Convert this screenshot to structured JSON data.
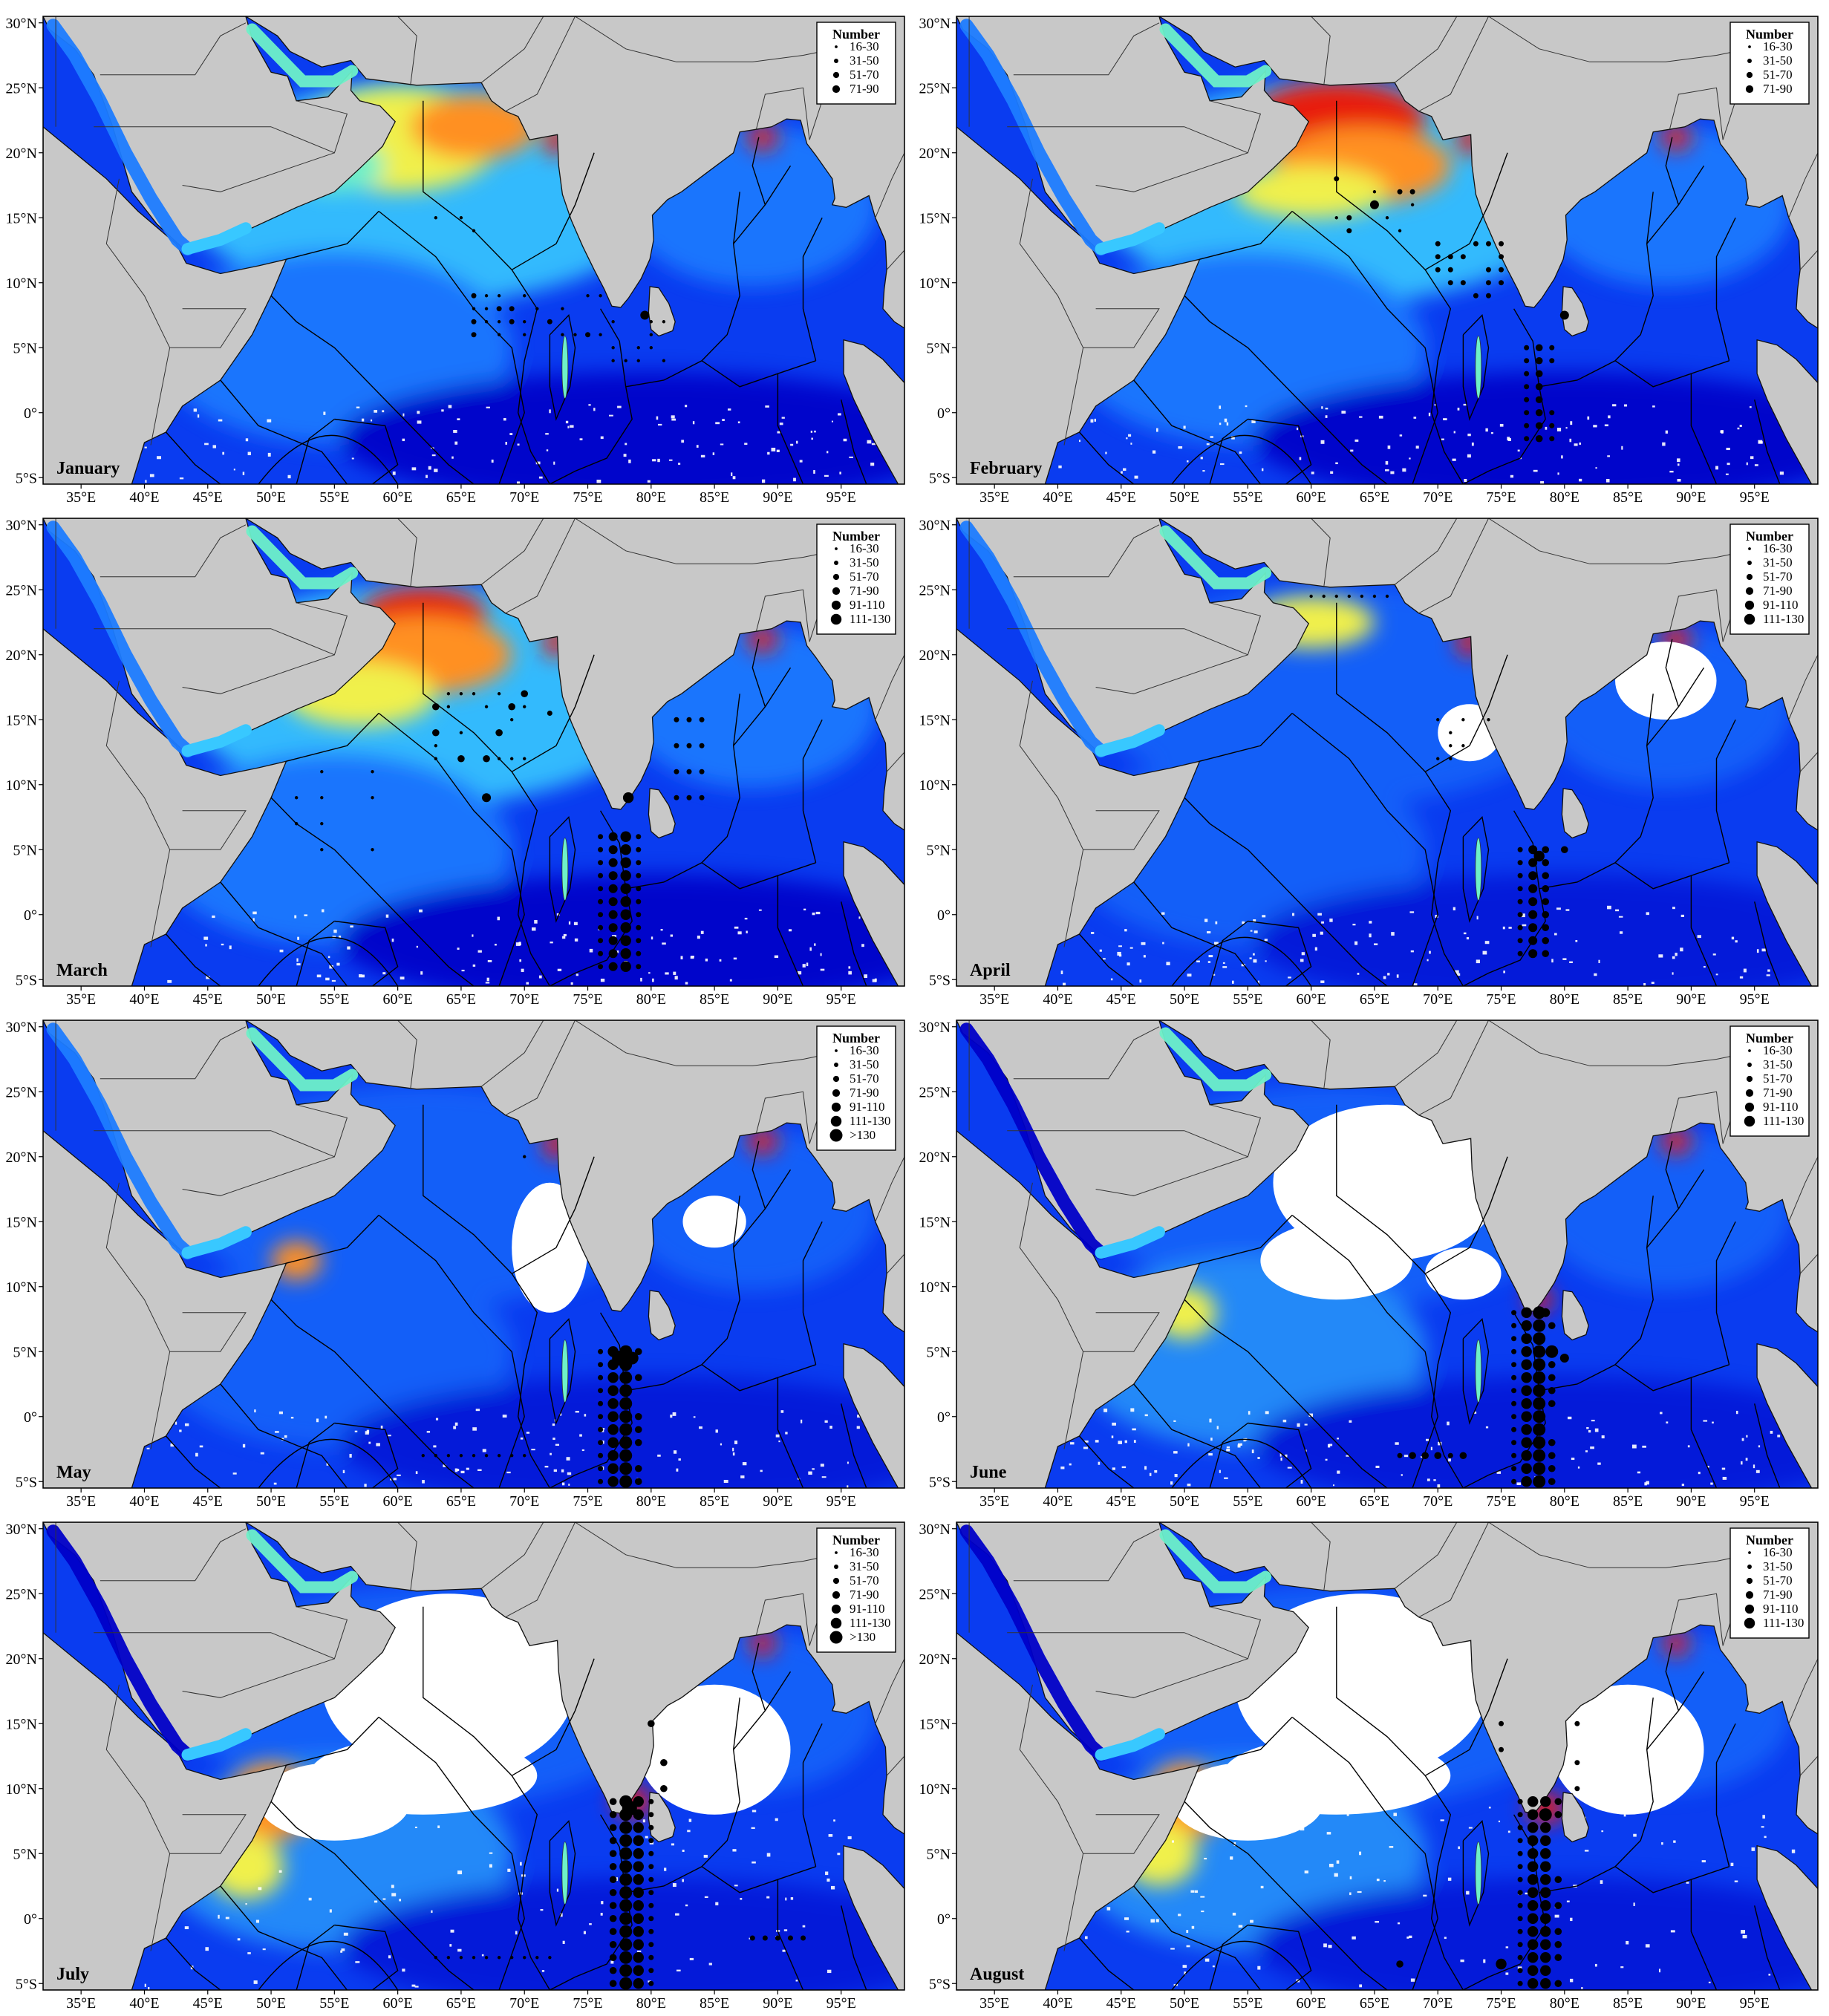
{
  "figure": {
    "months": [
      "January",
      "February",
      "March",
      "April",
      "May",
      "June",
      "July",
      "August"
    ],
    "lon_ticks": [
      "35°E",
      "40°E",
      "45°E",
      "50°E",
      "55°E",
      "60°E",
      "65°E",
      "70°E",
      "75°E",
      "80°E",
      "85°E",
      "90°E",
      "95°E"
    ],
    "lat_ticks": [
      "30°N",
      "25°N",
      "20°N",
      "15°N",
      "10°N",
      "5°N",
      "0°",
      "5°S"
    ],
    "lon_range": [
      32,
      100
    ],
    "lat_range": [
      -5.5,
      30.5
    ],
    "legend_title": "Number",
    "legends": [
      [
        "16-30",
        "31-50",
        "51-70",
        "71-90"
      ],
      [
        "16-30",
        "31-50",
        "51-70",
        "71-90"
      ],
      [
        "16-30",
        "31-50",
        "51-70",
        "71-90",
        "91-110",
        "111-130"
      ],
      [
        "16-30",
        "31-50",
        "51-70",
        "71-90",
        "91-110",
        "111-130"
      ],
      [
        "16-30",
        "31-50",
        "51-70",
        "71-90",
        "91-110",
        "111-130",
        ">130"
      ],
      [
        "16-30",
        "31-50",
        "51-70",
        "71-90",
        "91-110",
        "111-130"
      ],
      [
        "16-30",
        "31-50",
        "51-70",
        "71-90",
        "91-110",
        "111-130",
        ">130"
      ],
      [
        "16-30",
        "31-50",
        "51-70",
        "71-90",
        "91-110",
        "111-130"
      ]
    ],
    "chlorophyll_scale_colors": [
      "#0000c8",
      "#0a3cf0",
      "#1e7cff",
      "#38c8ff",
      "#6ef0c8",
      "#f0f04c",
      "#ff9020",
      "#e81e10"
    ],
    "land_color": "#c8c8c8",
    "cloud_color": "#ffffff"
  }
}
